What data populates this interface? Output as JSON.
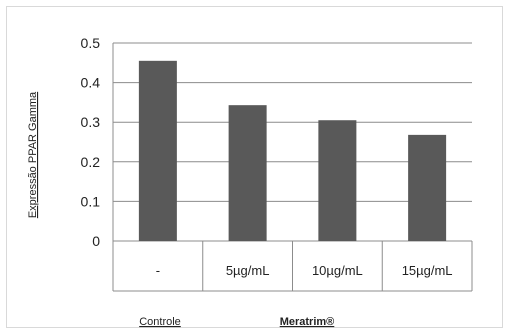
{
  "chart_data": {
    "type": "bar",
    "categories": [
      "-",
      "5µg/mL",
      "10µg/mL",
      "15µg/mL"
    ],
    "values": [
      0.455,
      0.343,
      0.305,
      0.268
    ],
    "ylabel": "Expressão PPAR Gamma",
    "ylim": [
      0,
      0.5
    ],
    "yticks": [
      "0",
      "0.1",
      "0.2",
      "0.3",
      "0.4",
      "0.5"
    ],
    "group_labels": [
      "Controle",
      "Meratrim®"
    ],
    "bar_color": "#595959",
    "grid": true,
    "legend": false
  }
}
